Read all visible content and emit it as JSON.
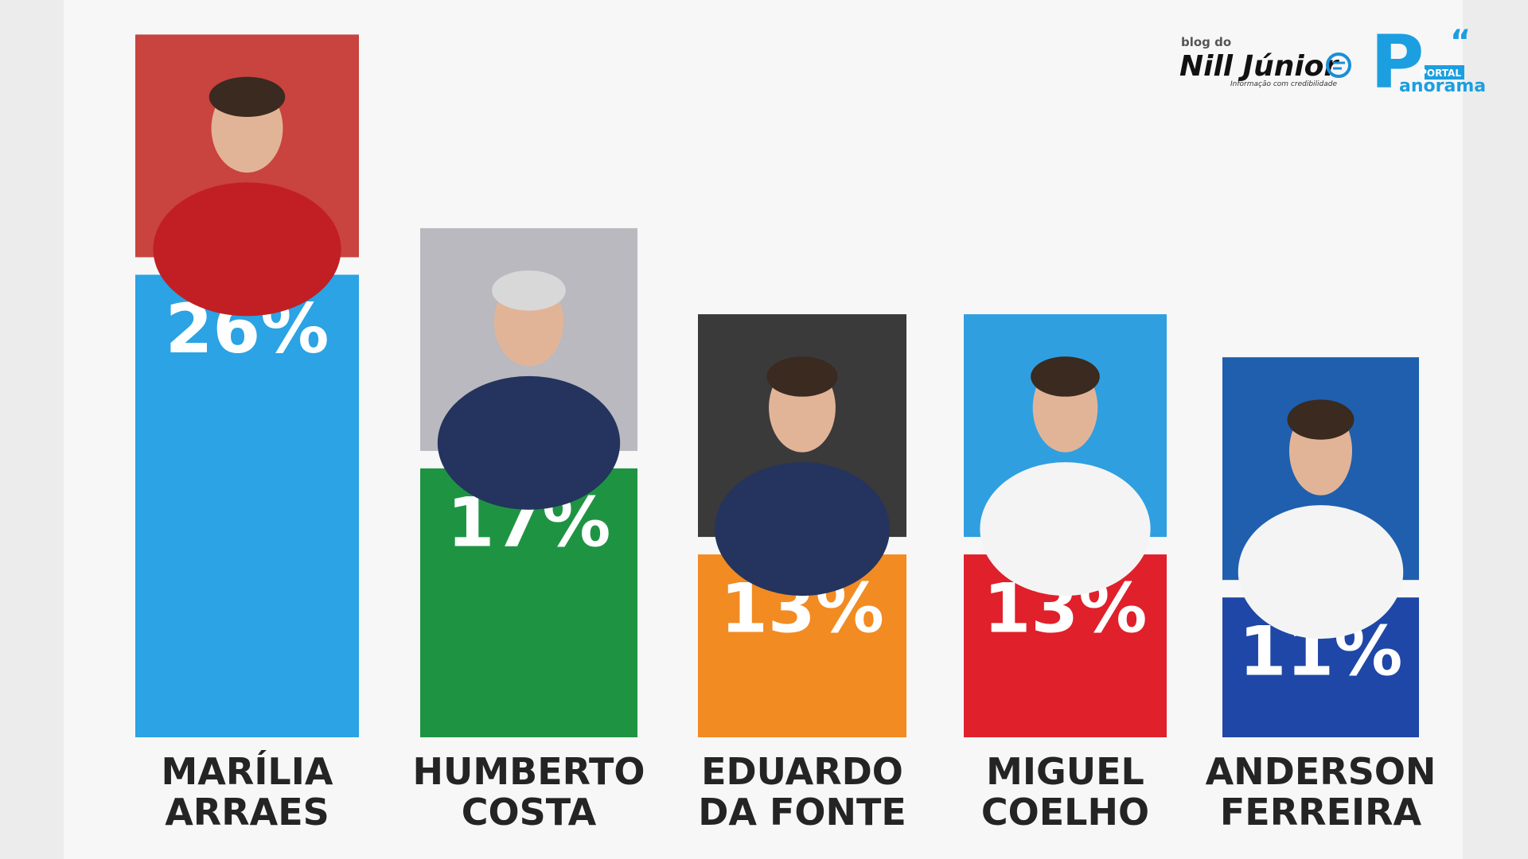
{
  "chart_data": {
    "type": "bar",
    "categories": [
      "MARÍLIA\nARRAES",
      "HUMBERTO\nCOSTA",
      "EDUARDO\nDA FONTE",
      "MIGUEL\nCOELHO",
      "ANDERSON\nFERREIRA"
    ],
    "values": [
      26,
      17,
      13,
      13,
      11
    ],
    "value_labels": [
      "26%",
      "17%",
      "13%",
      "13%",
      "11%"
    ],
    "colors": [
      "#2ba3e4",
      "#1e9443",
      "#f28b22",
      "#e0202b",
      "#1f47a8"
    ],
    "ylim": [
      4.5,
      30
    ]
  },
  "branding": {
    "blog_prefix": "blog do",
    "blog_name": "Nill Júnior",
    "blog_tagline": "Informação com credibilidade",
    "portal_label": "PORTAL",
    "portal_initial": "P",
    "portal_name": "anorama"
  }
}
